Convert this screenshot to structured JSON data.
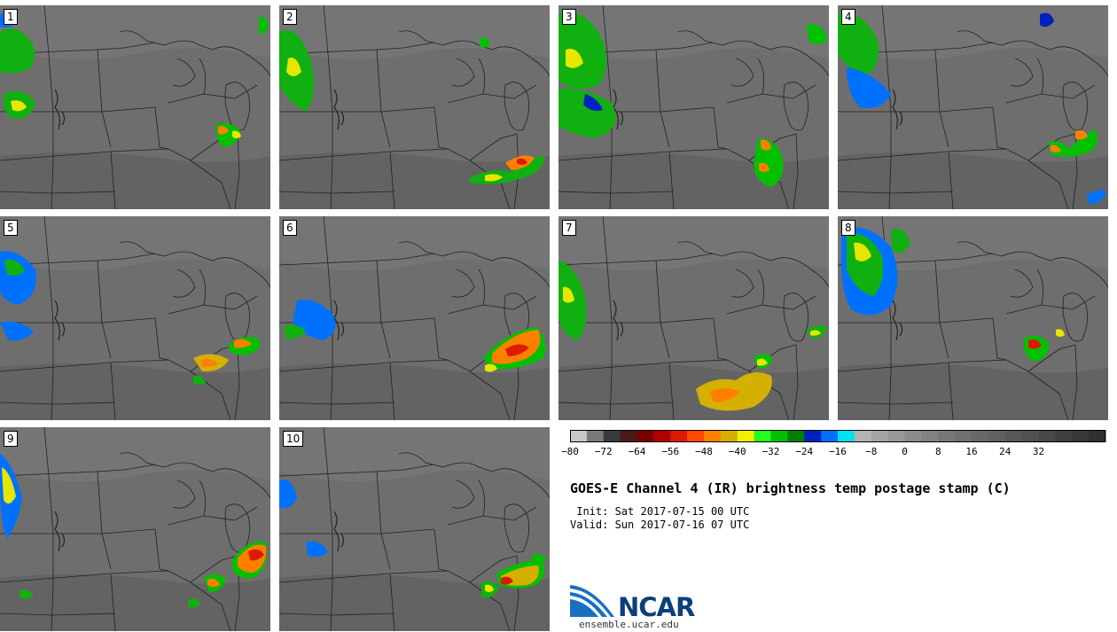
{
  "panels": [
    {
      "label": "1"
    },
    {
      "label": "2"
    },
    {
      "label": "3"
    },
    {
      "label": "4"
    },
    {
      "label": "5"
    },
    {
      "label": "6"
    },
    {
      "label": "7"
    },
    {
      "label": "8"
    },
    {
      "label": "9"
    },
    {
      "label": "10"
    }
  ],
  "colorbar": {
    "colors": [
      "#c8c8c8",
      "#7a7a7a",
      "#3a3a3a",
      "#4a1a1a",
      "#7a0000",
      "#b00000",
      "#dd1a00",
      "#ff4a00",
      "#ff8000",
      "#d4b000",
      "#f0f000",
      "#20ff20",
      "#00c000",
      "#008000",
      "#0020c0",
      "#0070ff",
      "#00e0f0",
      "#b4b4b4",
      "#a4a4a4",
      "#989898",
      "#8c8c8c",
      "#828282",
      "#787878",
      "#707070",
      "#686868",
      "#606060",
      "#585858",
      "#505050",
      "#484848",
      "#404040",
      "#383838",
      "#303030"
    ],
    "tick_labels": [
      "−80",
      "−72",
      "−64",
      "−56",
      "−48",
      "−40",
      "−32",
      "−24",
      "−16",
      "−8",
      "0",
      "8",
      "16",
      "24",
      "32"
    ]
  },
  "title": "GOES-E Channel 4 (IR) brightness temp postage stamp (C)",
  "init": " Init: Sat 2017-07-15 00 UTC",
  "valid": "Valid: Sun 2017-07-16 07 UTC",
  "logo": {
    "text": "NCAR",
    "url": "ensemble.ucar.edu"
  }
}
